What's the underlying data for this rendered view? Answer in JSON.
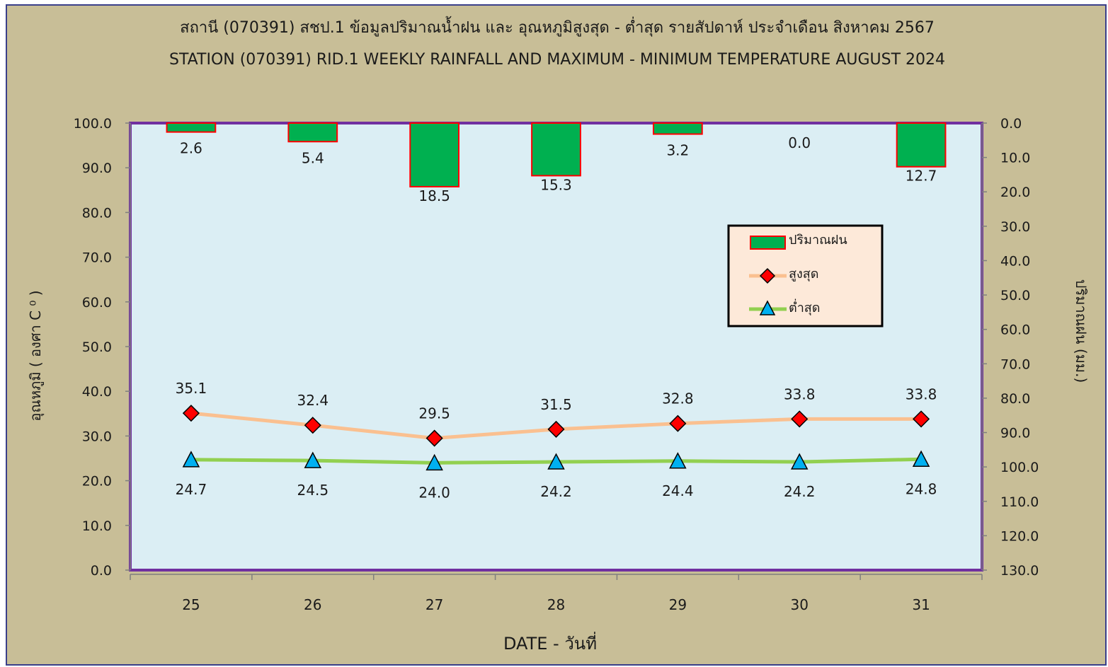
{
  "chart_data": {
    "type": "bar",
    "title_th": "สถานี (070391) สชป.1 ข้อมูลปริมาณน้ำฝน และ อุณหภูมิสูงสุด - ต่ำสุด รายสัปดาห์ ประจำเดือน  สิงหาคม   2567",
    "title_en": "STATION (070391) RID.1   WEEKLY   RAINFALL AND MAXIMUM - MINIMUM TEMPERATURE   AUGUST 2024",
    "xlabel": "DATE - วันที่",
    "ylabel_left": "อุณหภูมิ ( องศา C ⁰ )",
    "ylabel_right": "ปริมาณฝน (มม.)",
    "categories": [
      "25",
      "26",
      "27",
      "28",
      "29",
      "30",
      "31"
    ],
    "ylim_left": [
      0,
      100
    ],
    "yticks_left": [
      "0.0",
      "10.0",
      "20.0",
      "30.0",
      "40.0",
      "50.0",
      "60.0",
      "70.0",
      "80.0",
      "90.0",
      "100.0"
    ],
    "ylim_right": [
      0,
      130
    ],
    "yticks_right": [
      "0.0",
      "10.0",
      "20.0",
      "30.0",
      "40.0",
      "50.0",
      "60.0",
      "70.0",
      "80.0",
      "90.0",
      "100.0",
      "110.0",
      "120.0",
      "130.0"
    ],
    "right_axis_inverted": true,
    "series": [
      {
        "name": "ปริมาณฝน",
        "kind": "bar",
        "axis": "right",
        "values": [
          2.6,
          5.4,
          18.5,
          15.3,
          3.2,
          0.0,
          12.7
        ],
        "labels": [
          "2.6",
          "5.4",
          "18.5",
          "15.3",
          "3.2",
          "0.0",
          "12.7"
        ],
        "color": "#00b050",
        "edge_color": "#ff0000"
      },
      {
        "name": "สูงสุด",
        "kind": "line",
        "axis": "left",
        "values": [
          35.1,
          32.4,
          29.5,
          31.5,
          32.8,
          33.8,
          33.8
        ],
        "labels": [
          "35.1",
          "32.4",
          "29.5",
          "31.5",
          "32.8",
          "33.8",
          "33.8"
        ],
        "color": "#fac090",
        "marker": "diamond",
        "marker_color": "#ff0000"
      },
      {
        "name": "ต่ำสุด",
        "kind": "line",
        "axis": "left",
        "values": [
          24.7,
          24.5,
          24.0,
          24.2,
          24.4,
          24.2,
          24.8
        ],
        "labels": [
          "24.7",
          "24.5",
          "24.0",
          "24.2",
          "24.4",
          "24.2",
          "24.8"
        ],
        "color": "#92d050",
        "marker": "triangle",
        "marker_color": "#00b0f0"
      }
    ],
    "legend_position": "right",
    "grid": false,
    "plot_background": "#dbeef4",
    "frame_color": "#7030a0",
    "outer_background": "#c8be97"
  }
}
